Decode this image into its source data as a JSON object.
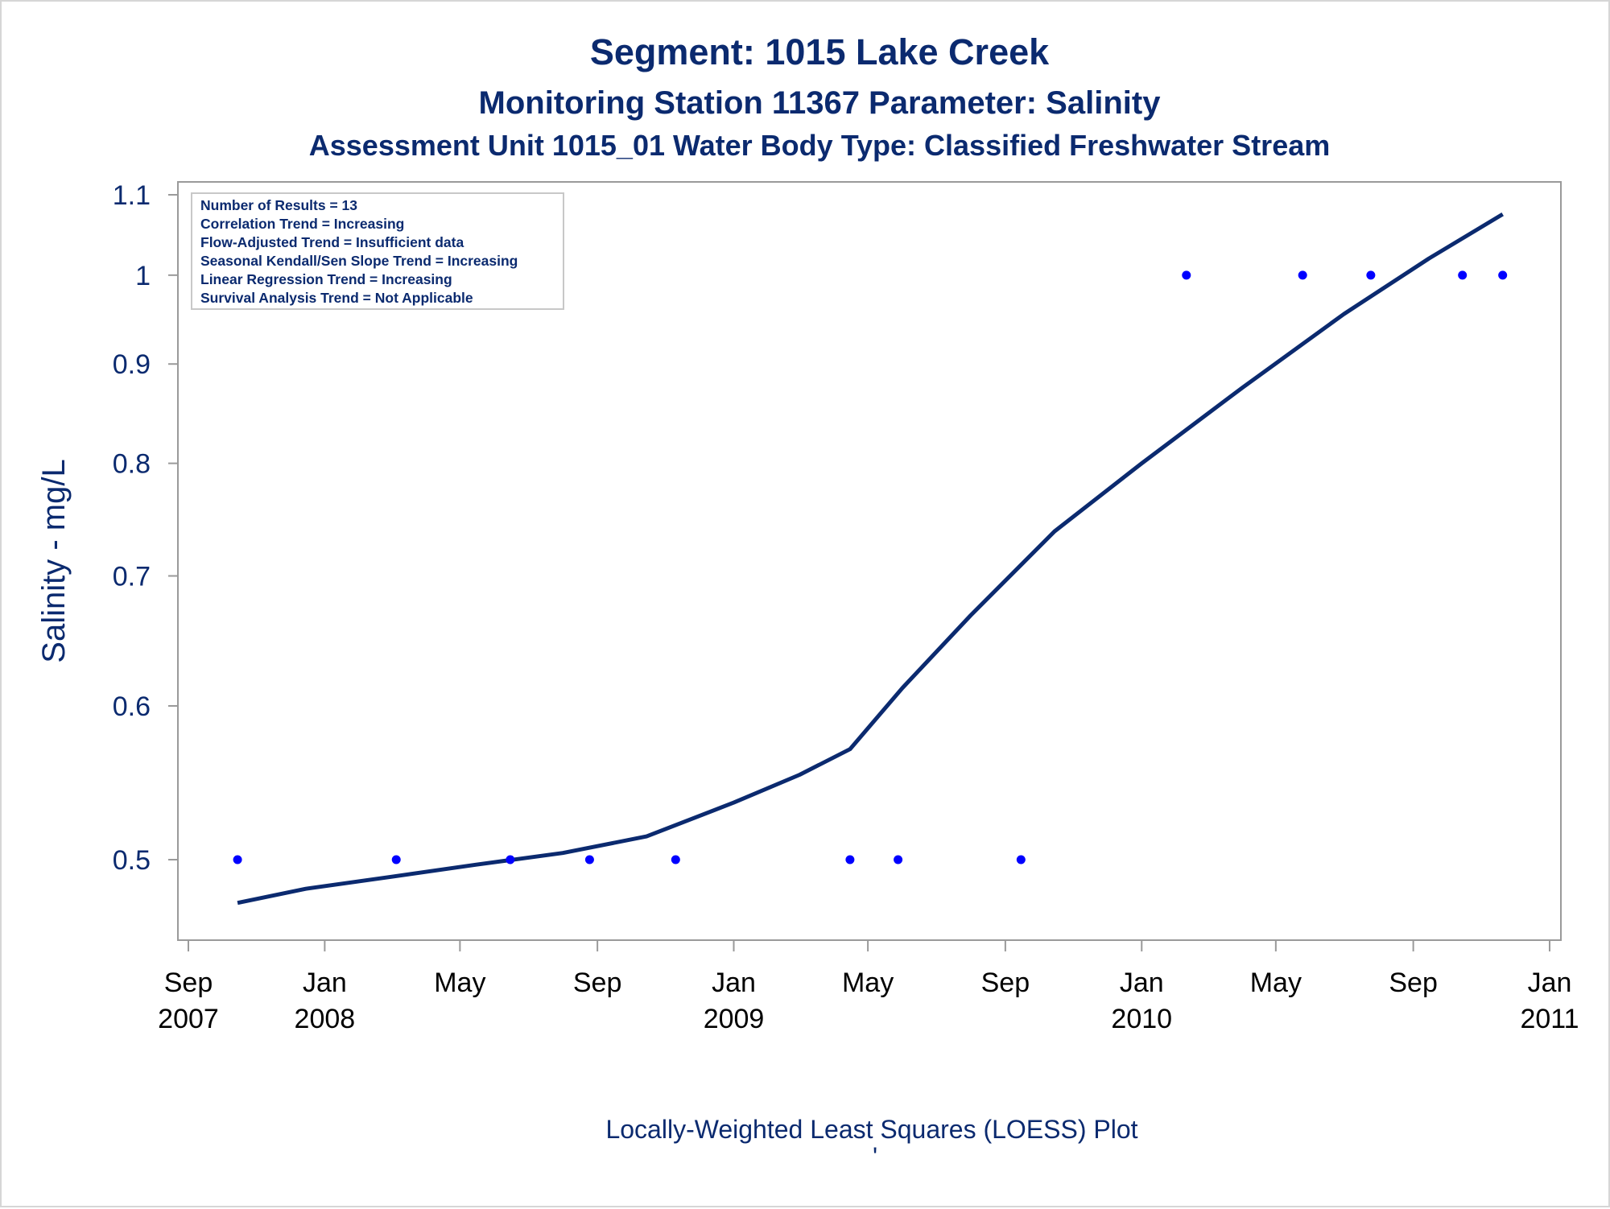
{
  "titles": {
    "line1": "Segment: 1015  Lake Creek",
    "line2": "Monitoring Station 11367 Parameter: Salinity",
    "line3": "Assessment Unit 1015_01   Water Body Type: Classified Freshwater Stream"
  },
  "footnote": "Locally-Weighted Least Squares (LOESS) Plot",
  "footnote2": "'",
  "inset": [
    "Number of Results = 13",
    "Correlation Trend = Increasing",
    "Flow-Adjusted Trend = Insufficient data",
    "Seasonal Kendall/Sen Slope Trend = Increasing",
    "Linear Regression Trend = Increasing",
    "Survival Analysis Trend = Not Applicable"
  ],
  "colors": {
    "text": "#0b2a6f",
    "points": "#0000ff",
    "loess_line": "#0b2a6f",
    "frame": "#9a9a9a"
  },
  "chart_data": {
    "type": "scatter",
    "ylabel": "Salinity - mg/L",
    "xlabel": "",
    "yscale": "log",
    "ylim": [
      0.47,
      1.1
    ],
    "xlim": [
      "2007-09-01",
      "2011-01-01"
    ],
    "yticks": [
      0.5,
      0.6,
      0.7,
      0.8,
      0.9,
      1,
      1.1
    ],
    "ytick_labels": [
      "0.5",
      "0.6",
      "0.7",
      "0.8",
      "0.9",
      "1",
      "1.1"
    ],
    "xticks": [
      {
        "date": "2007-09-01",
        "month": "Sep",
        "year": "2007"
      },
      {
        "date": "2008-01-01",
        "month": "Jan",
        "year": "2008"
      },
      {
        "date": "2008-05-01",
        "month": "May",
        "year": ""
      },
      {
        "date": "2008-09-01",
        "month": "Sep",
        "year": ""
      },
      {
        "date": "2009-01-01",
        "month": "Jan",
        "year": "2009"
      },
      {
        "date": "2009-05-01",
        "month": "May",
        "year": ""
      },
      {
        "date": "2009-09-01",
        "month": "Sep",
        "year": ""
      },
      {
        "date": "2010-01-01",
        "month": "Jan",
        "year": "2010"
      },
      {
        "date": "2010-05-01",
        "month": "May",
        "year": ""
      },
      {
        "date": "2010-09-01",
        "month": "Sep",
        "year": ""
      },
      {
        "date": "2011-01-01",
        "month": "Jan",
        "year": "2011"
      }
    ],
    "series": [
      {
        "kind": "points",
        "points": [
          {
            "x": "2007-10-15",
            "y": 0.5
          },
          {
            "x": "2008-03-05",
            "y": 0.5
          },
          {
            "x": "2008-06-15",
            "y": 0.5
          },
          {
            "x": "2008-08-25",
            "y": 0.5
          },
          {
            "x": "2008-11-10",
            "y": 0.5
          },
          {
            "x": "2009-04-15",
            "y": 0.5
          },
          {
            "x": "2009-05-28",
            "y": 0.5
          },
          {
            "x": "2009-09-15",
            "y": 0.5
          },
          {
            "x": "2010-02-10",
            "y": 1.0
          },
          {
            "x": "2010-05-25",
            "y": 1.0
          },
          {
            "x": "2010-07-25",
            "y": 1.0
          },
          {
            "x": "2010-10-15",
            "y": 1.0
          },
          {
            "x": "2010-11-20",
            "y": 1.0
          }
        ]
      },
      {
        "kind": "loess",
        "points": [
          {
            "x": "2007-10-15",
            "y": 0.475
          },
          {
            "x": "2007-12-15",
            "y": 0.483
          },
          {
            "x": "2008-03-01",
            "y": 0.49
          },
          {
            "x": "2008-05-15",
            "y": 0.497
          },
          {
            "x": "2008-08-01",
            "y": 0.504
          },
          {
            "x": "2008-10-15",
            "y": 0.514
          },
          {
            "x": "2009-01-01",
            "y": 0.535
          },
          {
            "x": "2009-03-01",
            "y": 0.553
          },
          {
            "x": "2009-04-15",
            "y": 0.57
          },
          {
            "x": "2009-06-01",
            "y": 0.613
          },
          {
            "x": "2009-08-01",
            "y": 0.668
          },
          {
            "x": "2009-10-15",
            "y": 0.738
          },
          {
            "x": "2010-01-01",
            "y": 0.8
          },
          {
            "x": "2010-04-01",
            "y": 0.875
          },
          {
            "x": "2010-07-01",
            "y": 0.955
          },
          {
            "x": "2010-09-15",
            "y": 1.02
          },
          {
            "x": "2010-11-20",
            "y": 1.075
          }
        ]
      }
    ]
  }
}
